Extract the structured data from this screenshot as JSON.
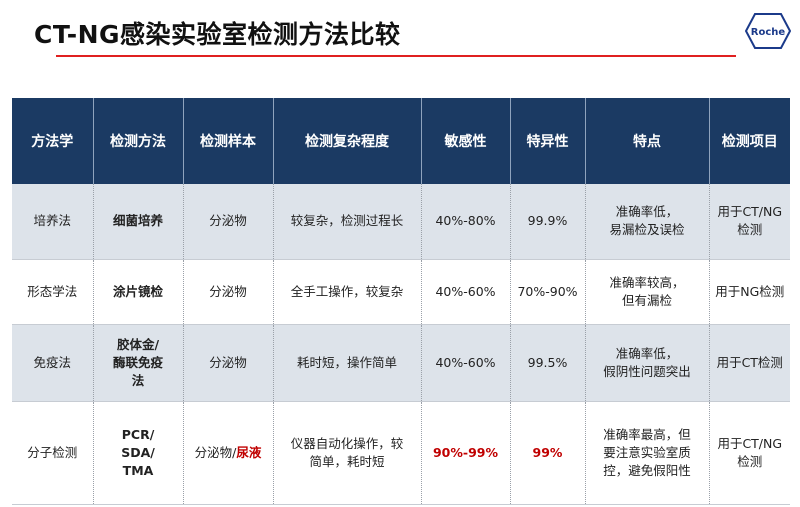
{
  "title": "CT-NG感染实验室检测方法比较",
  "logo": {
    "text": "Roche",
    "icon": "roche-hexagon-logo",
    "color": "#1b3a8a"
  },
  "colors": {
    "header_bg": "#1b3a63",
    "row_shade": "#dde3ea",
    "accent_red": "#c00000",
    "title_rule": "#e02020"
  },
  "table": {
    "headers": [
      "方法学",
      "检测方法",
      "检测样本",
      "检测复杂程度",
      "敏感性",
      "特异性",
      "特点",
      "检测项目"
    ],
    "rows": [
      {
        "method_class": "培养法",
        "method": "细菌培养",
        "sample": "分泌物",
        "sample_extra": "",
        "complexity": "较复杂，检测过程长",
        "sensitivity": "40%-80%",
        "specificity": "99.9%",
        "features": [
          "准确率低，",
          "易漏检及误检"
        ],
        "items": [
          "用于CT/NG",
          "检测"
        ]
      },
      {
        "method_class": "形态学法",
        "method": "涂片镜检",
        "sample": "分泌物",
        "sample_extra": "",
        "complexity": "全手工操作，较复杂",
        "sensitivity": "40%-60%",
        "specificity": "70%-90%",
        "features": [
          "准确率较高，",
          "但有漏检"
        ],
        "items": [
          "用于NG检测"
        ]
      },
      {
        "method_class": "免疫法",
        "method": "胶体金/酶联免疫法",
        "method_lines": [
          "胶体金/",
          "酶联免疫",
          "法"
        ],
        "sample": "分泌物",
        "sample_extra": "",
        "complexity": "耗时短，操作简单",
        "sensitivity": "40%-60%",
        "specificity": "99.5%",
        "features": [
          "准确率低，",
          "假阴性问题突出"
        ],
        "items": [
          "用于CT检测"
        ]
      },
      {
        "method_class": "分子检测",
        "method": "PCR/SDA/TMA",
        "method_lines": [
          "PCR/",
          "SDA/",
          "TMA"
        ],
        "sample": "分泌物/",
        "sample_extra": "尿液",
        "complexity": "仪器自动化操作，较简单，耗时短",
        "complexity_lines": [
          "仪器自动化操作，较",
          "简单，耗时短"
        ],
        "sensitivity": "90%-99%",
        "specificity": "99%",
        "features": [
          "准确率最高，但",
          "要注意实验室质",
          "控，避免假阳性"
        ],
        "items": [
          "用于CT/NG",
          "检测"
        ]
      }
    ]
  }
}
